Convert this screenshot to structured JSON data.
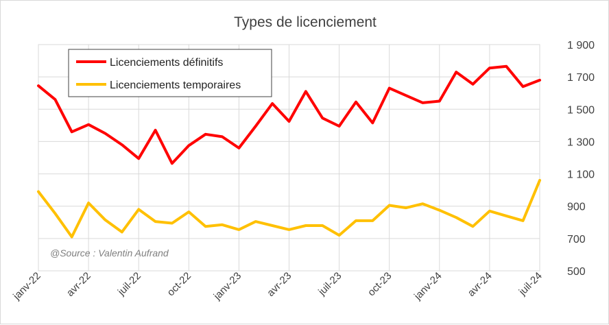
{
  "chart_data": {
    "type": "line",
    "title": "Types de licenciement",
    "source": "@Source : Valentin Aufrand",
    "ylim": [
      500,
      1900
    ],
    "yticks": [
      500,
      700,
      900,
      1100,
      1300,
      1500,
      1700,
      1900
    ],
    "ytick_labels": [
      "500",
      "700",
      "900",
      "1 100",
      "1 300",
      "1 500",
      "1 700",
      "1 900"
    ],
    "xtick_labels": [
      "janv-22",
      "avr-22",
      "juil-22",
      "oct-22",
      "janv-23",
      "avr-23",
      "juil-23",
      "oct-23",
      "janv-24",
      "avr-24",
      "juil-24"
    ],
    "x": [
      "janv-22",
      "févr-22",
      "mars-22",
      "avr-22",
      "mai-22",
      "juin-22",
      "juil-22",
      "août-22",
      "sept-22",
      "oct-22",
      "nov-22",
      "déc-22",
      "janv-23",
      "févr-23",
      "mars-23",
      "avr-23",
      "mai-23",
      "juin-23",
      "juil-23",
      "août-23",
      "sept-23",
      "oct-23",
      "nov-23",
      "déc-23",
      "janv-24",
      "févr-24",
      "mars-24",
      "avr-24",
      "mai-24",
      "juin-24",
      "juil-24"
    ],
    "grid": true,
    "legend_position": "top-left",
    "series": [
      {
        "name": "Licenciements définitifs",
        "color": "#ff0000",
        "values": [
          1645,
          1560,
          1360,
          1405,
          1350,
          1280,
          1195,
          1370,
          1165,
          1275,
          1345,
          1330,
          1260,
          1395,
          1535,
          1425,
          1610,
          1445,
          1395,
          1545,
          1415,
          1630,
          1585,
          1540,
          1550,
          1730,
          1655,
          1755,
          1765,
          1640,
          1680
        ]
      },
      {
        "name": "Licenciements temporaires",
        "color": "#ffc000",
        "values": [
          990,
          855,
          710,
          920,
          815,
          740,
          880,
          805,
          795,
          865,
          775,
          785,
          755,
          805,
          780,
          755,
          780,
          780,
          720,
          810,
          810,
          905,
          890,
          915,
          875,
          830,
          775,
          870,
          840,
          810,
          1060
        ]
      }
    ]
  }
}
